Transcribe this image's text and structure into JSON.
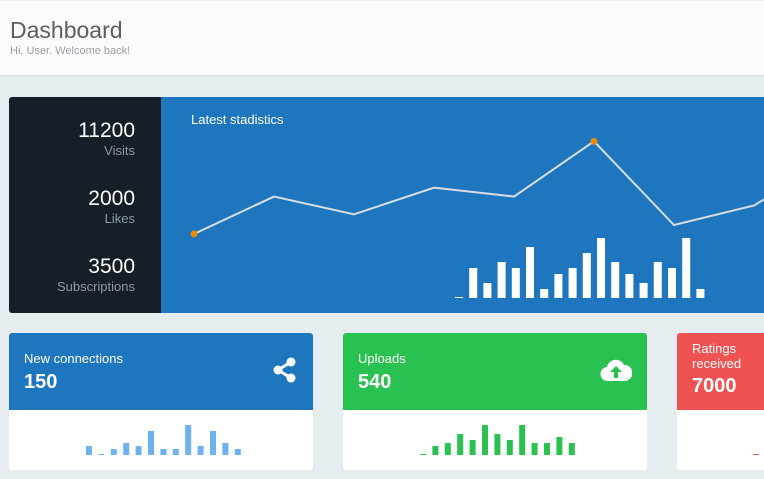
{
  "header": {
    "title": "Dashboard",
    "subtitle": "Hi, User. Welcome back!"
  },
  "stats": [
    {
      "value": "11200",
      "label": "Visits"
    },
    {
      "value": "2000",
      "label": "Likes"
    },
    {
      "value": "3500",
      "label": "Subscriptions"
    }
  ],
  "chart_data": [
    {
      "type": "line",
      "title": "Latest stadistics",
      "values": [
        36,
        57,
        47,
        62,
        57,
        88,
        41,
        52
      ],
      "highlighted_points": [
        0,
        5
      ],
      "line_color": "#d9dde3",
      "point_color": "#f08a00"
    },
    {
      "type": "bar",
      "values": [
        0,
        10,
        5,
        12,
        10,
        17,
        3,
        8,
        10,
        15,
        20,
        12,
        8,
        5,
        12,
        10,
        20,
        3
      ],
      "bar_color": "#ffffff"
    }
  ],
  "cards": [
    {
      "title": "New connections",
      "value": "150",
      "icon": "share-icon",
      "color": "#1e76be",
      "bar_color": "#6db2ee",
      "bars": [
        3,
        0,
        2,
        4,
        3,
        8,
        2,
        2,
        10,
        3,
        8,
        4,
        2
      ]
    },
    {
      "title": "Uploads",
      "value": "540",
      "icon": "cloud-upload-icon",
      "color": "#29c14f",
      "bar_color": "#29c14f",
      "bars": [
        0,
        3,
        4,
        7,
        5,
        10,
        7,
        5,
        10,
        4,
        4,
        6,
        4
      ]
    },
    {
      "title": "Ratings received",
      "value": "7000",
      "icon": "star-icon",
      "color": "#f05252",
      "bar_color": "#f05252",
      "bars": [
        0
      ]
    }
  ]
}
